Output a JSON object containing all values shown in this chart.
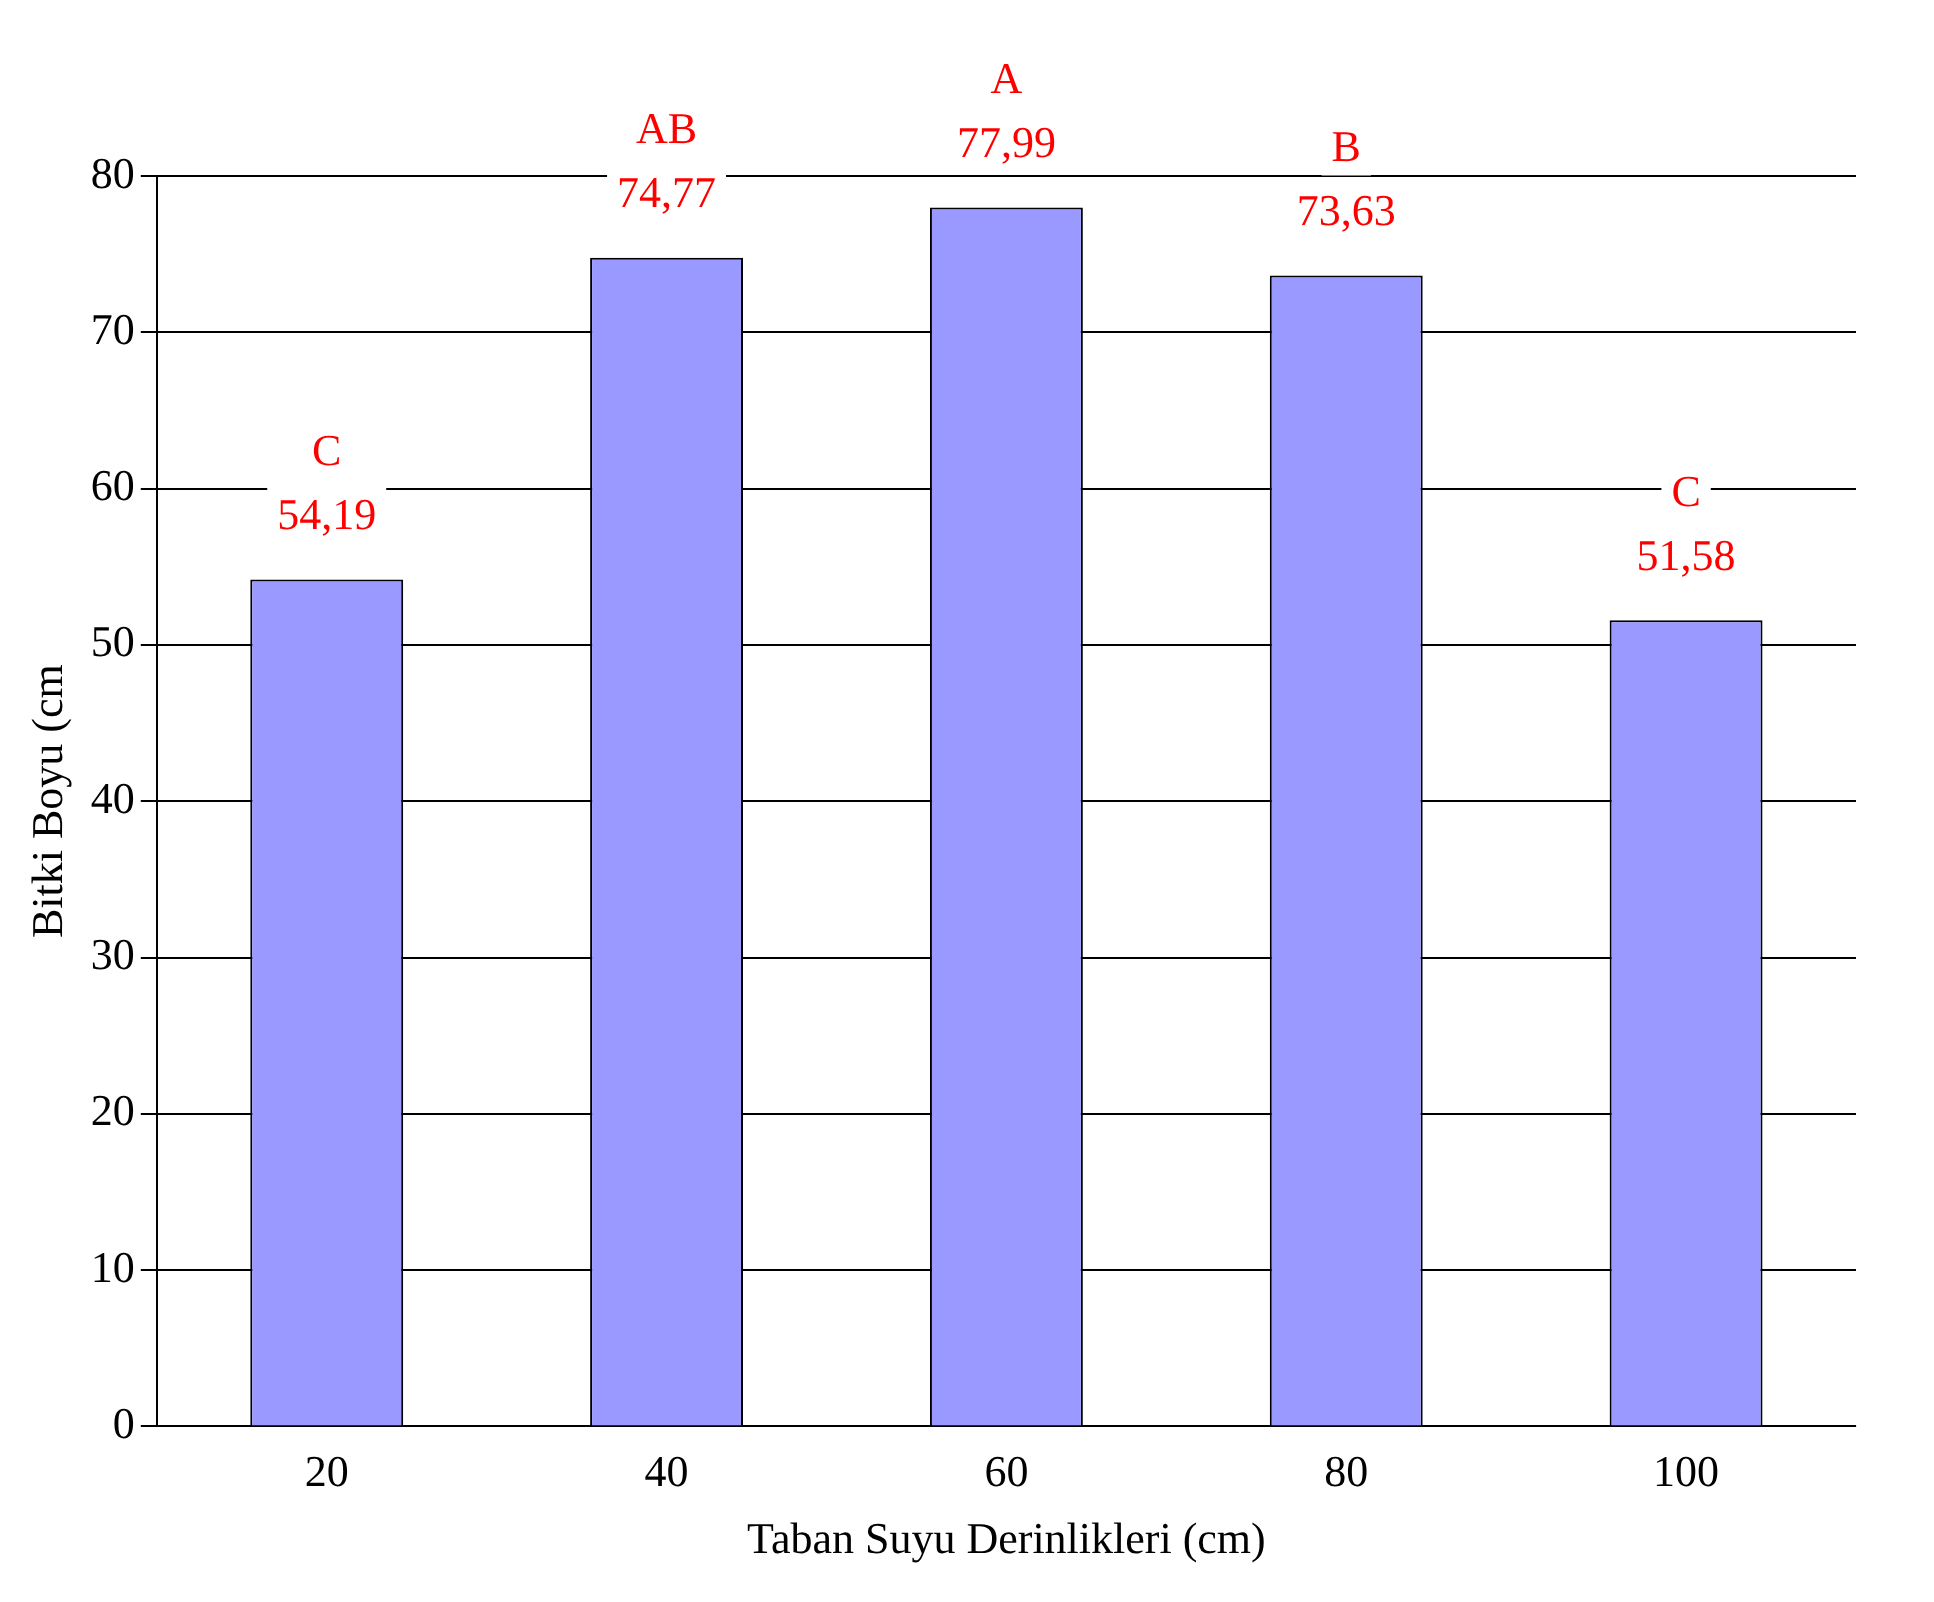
{
  "chart_data": {
    "type": "bar",
    "xlabel": "Taban Suyu Derinlikleri (cm)",
    "ylabel": "Bitki Boyu (cm",
    "categories": [
      "20",
      "40",
      "60",
      "80",
      "100"
    ],
    "values": [
      54.19,
      74.77,
      77.99,
      73.63,
      51.58
    ],
    "color": "#9999ff",
    "value_labels": [
      "54,19",
      "74,77",
      "77,99",
      "73,63",
      "51,58"
    ],
    "annotations": [
      {
        "text": "C",
        "x": "20",
        "y": 54.19
      },
      {
        "text": "AB",
        "x": "40",
        "y": 74.77
      },
      {
        "text": "A",
        "x": "60",
        "y": 77.99
      },
      {
        "text": "B",
        "x": "80",
        "y": 73.63
      },
      {
        "text": "C",
        "x": "100",
        "y": 51.58
      }
    ],
    "ylim": [
      0,
      80
    ],
    "yticks": [
      0,
      10,
      20,
      30,
      40,
      50,
      60,
      70,
      80
    ],
    "grid": "y",
    "legend": false
  }
}
